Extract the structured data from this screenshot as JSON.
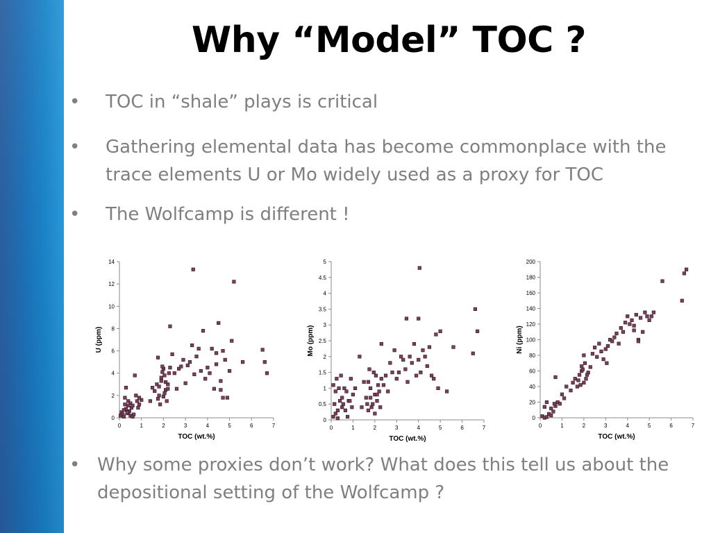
{
  "slide": {
    "title": "Why “Model” TOC ?",
    "bullets": [
      "TOC in “shale” plays is critical",
      "Gathering elemental data has become commonplace with the trace elements U or Mo widely used as a proxy for TOC",
      "The Wolfcamp is different !"
    ],
    "closing_bullet": "Why some proxies don’t work? What does this tell us about the depositional setting of the Wolfcamp ?",
    "bullet_char": "•",
    "colors": {
      "sidebar": "#1e6fb5",
      "body_text": "#7f7f7f",
      "marker": "#7b3f5a",
      "marker_border": "#2b1520"
    }
  },
  "chart_data": [
    {
      "type": "scatter",
      "xlabel": "TOC (wt.%)",
      "ylabel": "U (ppm)",
      "xlim": [
        0,
        7
      ],
      "ylim": [
        0,
        14
      ],
      "xticks": [
        "0",
        "1",
        "2",
        "3",
        "4",
        "5",
        "6",
        "7"
      ],
      "yticks": [
        "0",
        "2",
        "4",
        "6",
        "8",
        "10",
        "12",
        "14"
      ],
      "grid": false,
      "x": [
        0.05,
        0.1,
        0.15,
        0.2,
        0.25,
        0.3,
        0.35,
        0.4,
        0.45,
        0.5,
        0.55,
        0.6,
        0.2,
        0.3,
        0.25,
        0.4,
        0.5,
        0.6,
        0.65,
        0.7,
        0.8,
        0.9,
        1.0,
        0.75,
        0.85,
        0.9,
        0.4,
        0.35,
        1.4,
        1.5,
        1.6,
        1.7,
        1.75,
        1.8,
        1.85,
        1.9,
        1.95,
        2.0,
        2.05,
        2.1,
        2.15,
        2.2,
        2.25,
        1.8,
        1.9,
        2.0,
        2.05,
        1.95,
        2.1,
        2.2,
        1.75,
        2.3,
        2.4,
        2.5,
        2.6,
        2.7,
        2.8,
        2.9,
        3.0,
        3.1,
        3.2,
        3.3,
        3.4,
        3.5,
        3.6,
        3.7,
        3.8,
        3.9,
        4.0,
        4.1,
        4.2,
        4.3,
        4.4,
        4.5,
        4.6,
        4.7,
        4.8,
        4.9,
        5.0,
        5.1,
        3.35,
        5.2,
        2.3,
        6.5,
        6.6,
        6.7,
        5.6,
        4.4,
        4.7,
        4.6
      ],
      "y": [
        0.2,
        0.5,
        0.3,
        0.1,
        1.2,
        0.8,
        0.4,
        1.5,
        0.6,
        0.2,
        0.9,
        0.1,
        0.7,
        2.7,
        1.8,
        0.5,
        1.3,
        1.1,
        0.3,
        3.8,
        1.5,
        1.2,
        1.6,
        2.0,
        0.9,
        1.8,
        1.1,
        0.5,
        1.5,
        2.7,
        2.4,
        3.0,
        5.4,
        2.0,
        1.2,
        3.3,
        4.1,
        1.9,
        3.8,
        2.5,
        1.5,
        3.0,
        4.0,
        2.8,
        3.6,
        4.4,
        2.2,
        4.6,
        3.2,
        2.6,
        1.7,
        4.5,
        5.7,
        4.0,
        2.6,
        4.4,
        4.6,
        5.2,
        3.1,
        4.7,
        5.0,
        6.5,
        3.9,
        5.5,
        6.2,
        4.2,
        7.8,
        3.5,
        4.5,
        4.0,
        6.2,
        2.6,
        4.8,
        8.5,
        3.3,
        6.0,
        5.2,
        1.8,
        4.2,
        6.9,
        13.3,
        12.2,
        8.2,
        6.1,
        5.0,
        4.0,
        5.0,
        5.8,
        1.8,
        2.5
      ]
    },
    {
      "type": "scatter",
      "xlabel": "TOC (wt.%)",
      "ylabel": "Mo (ppm)",
      "xlim": [
        0,
        7
      ],
      "ylim": [
        0,
        5
      ],
      "xticks": [
        "0",
        "1",
        "2",
        "3",
        "4",
        "5",
        "6",
        "7"
      ],
      "yticks": [
        "0",
        "0.5",
        "1",
        "1.5",
        "2",
        "2.5",
        "3",
        "3.5",
        "4",
        "4.5",
        "5"
      ],
      "grid": false,
      "x": [
        0.1,
        0.15,
        0.2,
        0.25,
        0.3,
        0.35,
        0.4,
        0.45,
        0.5,
        0.55,
        0.6,
        0.7,
        0.8,
        0.9,
        1.0,
        1.1,
        0.2,
        0.3,
        0.5,
        0.65,
        0.75,
        0.85,
        0.95,
        0.1,
        1.4,
        1.5,
        1.6,
        1.7,
        1.8,
        1.9,
        2.0,
        2.05,
        2.1,
        2.15,
        2.2,
        2.25,
        2.3,
        1.8,
        1.95,
        2.0,
        2.1,
        1.7,
        1.65,
        1.75,
        1.85,
        2.4,
        2.5,
        2.6,
        2.7,
        2.8,
        2.9,
        3.0,
        3.1,
        3.2,
        3.3,
        3.4,
        3.5,
        3.6,
        3.7,
        3.8,
        3.9,
        4.0,
        4.1,
        4.2,
        4.3,
        4.4,
        4.5,
        4.6,
        4.7,
        4.8,
        4.9,
        5.0,
        5.3,
        5.6,
        4.0,
        6.5,
        6.6,
        6.7,
        4.05,
        3.45,
        2.3,
        1.3
      ],
      "y": [
        0.1,
        0.5,
        0.9,
        1.3,
        0.3,
        1.0,
        0.6,
        1.4,
        0.7,
        0.5,
        1.0,
        0.9,
        0.6,
        1.3,
        0.8,
        1.0,
        0.2,
        0.05,
        0.4,
        0.3,
        0.1,
        0.6,
        0.4,
        1.1,
        0.4,
        1.2,
        0.7,
        0.3,
        1.0,
        0.5,
        0.8,
        1.4,
        0.6,
        1.1,
        0.9,
        0.4,
        1.3,
        0.7,
        1.5,
        0.2,
        0.8,
        1.2,
        0.5,
        1.6,
        0.4,
        1.1,
        1.4,
        0.9,
        1.8,
        1.5,
        2.2,
        1.3,
        1.5,
        2.0,
        1.9,
        1.6,
        1.2,
        2.0,
        1.8,
        2.4,
        1.4,
        1.9,
        1.5,
        2.2,
        2.0,
        1.7,
        2.3,
        1.4,
        1.3,
        2.7,
        1.0,
        2.8,
        0.9,
        2.3,
        3.2,
        2.1,
        3.5,
        2.8,
        4.8,
        3.2,
        2.4,
        2.0
      ],
      "_note": "approximate readings"
    },
    {
      "type": "scatter",
      "xlabel": "TOC (wt.%)",
      "ylabel": "Ni (ppm)",
      "xlim": [
        0,
        7
      ],
      "ylim": [
        0,
        200
      ],
      "xticks": [
        "0",
        "1",
        "2",
        "3",
        "4",
        "5",
        "6",
        "7"
      ],
      "yticks": [
        "0",
        "20",
        "40",
        "60",
        "80",
        "100",
        "120",
        "140",
        "160",
        "180",
        "200"
      ],
      "grid": false,
      "x": [
        0.1,
        0.2,
        0.3,
        0.4,
        0.5,
        0.6,
        0.7,
        0.8,
        0.9,
        1.0,
        1.1,
        0.3,
        0.5,
        0.7,
        0.2,
        1.2,
        1.4,
        1.5,
        1.6,
        1.7,
        1.8,
        1.9,
        2.0,
        2.05,
        2.1,
        2.2,
        2.3,
        1.75,
        1.85,
        1.95,
        2.0,
        2.15,
        1.9,
        2.4,
        2.5,
        2.6,
        2.7,
        2.8,
        2.9,
        3.0,
        3.1,
        3.2,
        3.3,
        3.4,
        3.5,
        3.6,
        3.7,
        3.8,
        3.9,
        4.0,
        4.1,
        4.2,
        4.3,
        4.4,
        4.5,
        4.6,
        4.7,
        4.8,
        4.9,
        5.0,
        5.1,
        5.2,
        5.6,
        6.5,
        6.6,
        6.7,
        4.3,
        4.5,
        3.05,
        0.65
      ],
      "y": [
        2,
        0,
        1,
        5,
        3,
        8,
        15,
        20,
        18,
        30,
        25,
        20,
        12,
        52,
        14,
        40,
        35,
        45,
        50,
        40,
        55,
        60,
        45,
        70,
        50,
        58,
        65,
        48,
        42,
        62,
        80,
        55,
        66,
        82,
        90,
        78,
        95,
        85,
        75,
        88,
        92,
        100,
        98,
        103,
        108,
        95,
        115,
        110,
        122,
        130,
        120,
        125,
        118,
        132,
        100,
        128,
        110,
        135,
        130,
        125,
        130,
        135,
        175,
        150,
        185,
        190,
        112,
        98,
        70,
        18
      ]
    }
  ]
}
